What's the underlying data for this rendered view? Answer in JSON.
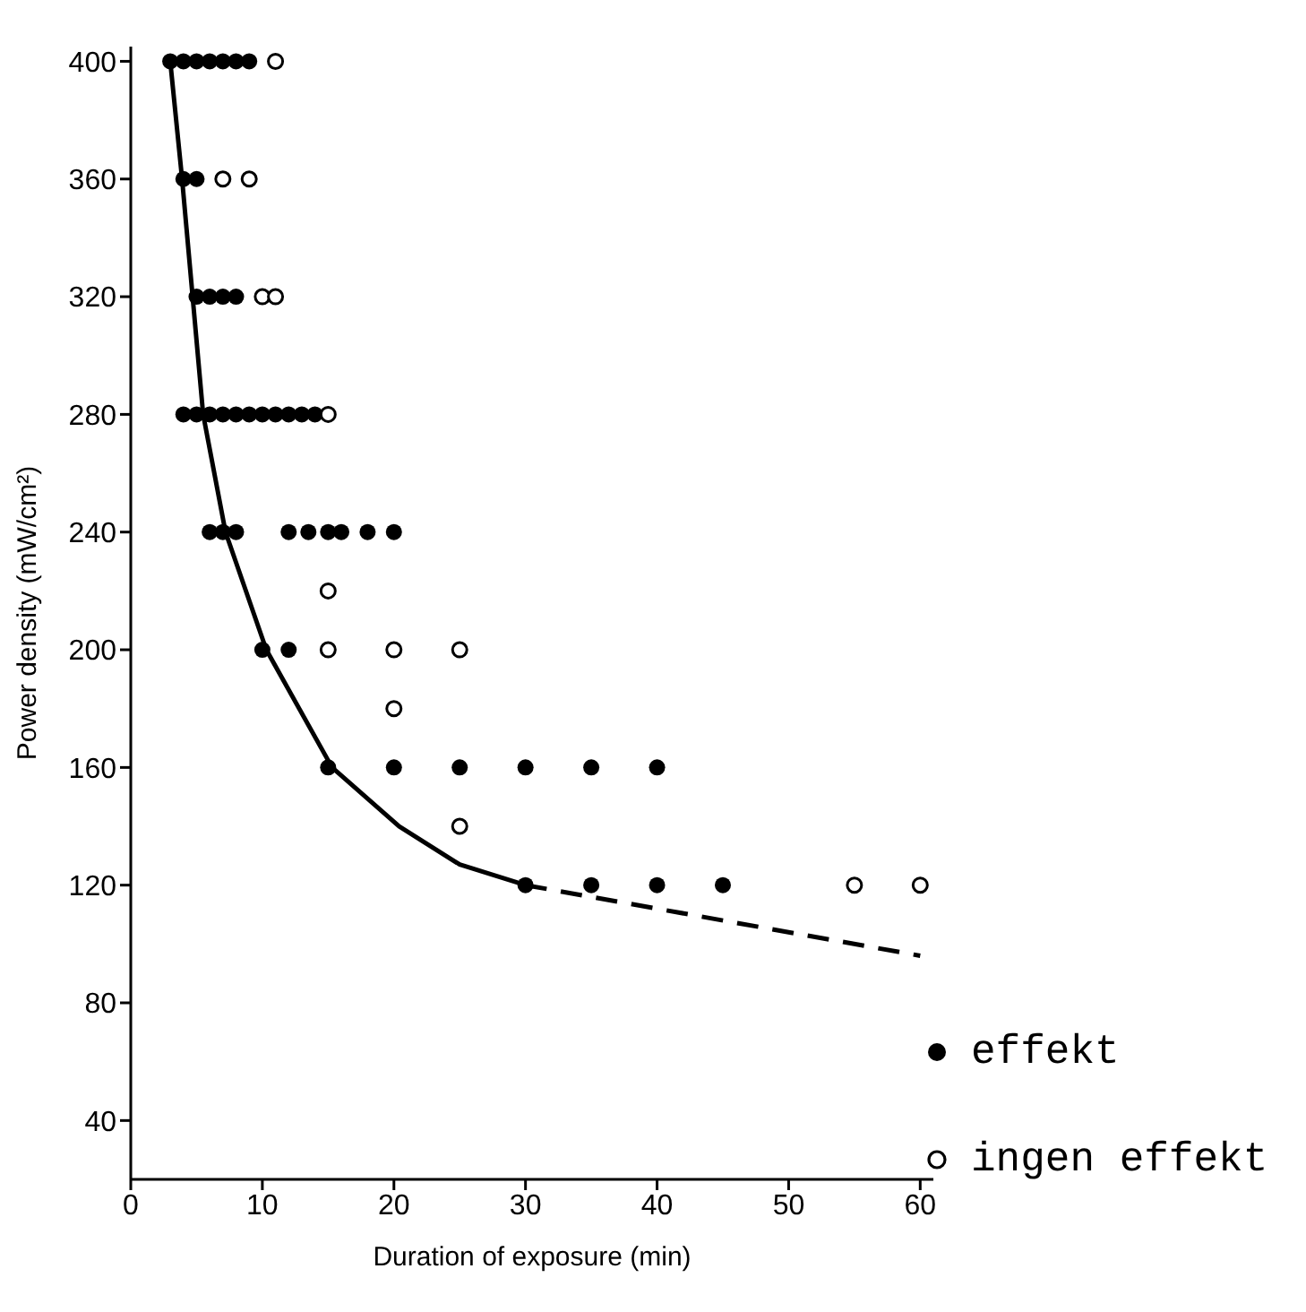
{
  "chart_data": {
    "type": "scatter",
    "xlabel": "Duration of exposure (min)",
    "ylabel": "Power density (mW/cm²)",
    "xlim": [
      0,
      61
    ],
    "xticks": [
      0,
      10,
      20,
      30,
      40,
      50,
      60
    ],
    "ylim": [
      20,
      405
    ],
    "yticks": [
      40,
      80,
      120,
      160,
      200,
      240,
      280,
      320,
      360,
      400
    ],
    "grid": false,
    "legend": "bottom right",
    "series": [
      {
        "name": "effekt",
        "marker": "circle",
        "color": "#000000",
        "x": [
          3,
          4,
          5,
          6,
          7,
          8,
          9,
          4,
          5,
          5,
          6,
          7,
          8,
          4,
          5,
          6,
          7,
          8,
          9,
          10,
          11,
          12,
          13,
          14,
          6,
          7,
          8,
          12,
          13.5,
          15,
          16,
          18,
          20,
          10,
          12,
          15,
          20,
          25,
          30,
          35,
          40,
          30,
          35,
          40,
          45
        ],
        "values": [
          400,
          400,
          400,
          400,
          400,
          400,
          400,
          360,
          360,
          320,
          320,
          320,
          320,
          280,
          280,
          280,
          280,
          280,
          280,
          280,
          280,
          280,
          280,
          280,
          240,
          240,
          240,
          240,
          240,
          240,
          240,
          240,
          240,
          200,
          200,
          160,
          160,
          160,
          160,
          160,
          160,
          120,
          120,
          120,
          120
        ]
      },
      {
        "name": "ingen effekt",
        "marker": "circle-open",
        "color": "#000000",
        "x": [
          11,
          7,
          9,
          10,
          11,
          15,
          15,
          15,
          20,
          25,
          20,
          25,
          55,
          60
        ],
        "values": [
          400,
          360,
          360,
          320,
          320,
          280,
          220,
          200,
          200,
          200,
          180,
          140,
          120,
          120
        ]
      },
      {
        "type": "line",
        "line_style": "solid",
        "marker": "none",
        "color": "#000000",
        "x": [
          3,
          3.9,
          4.7,
          5.5,
          7.2,
          10.3,
          15.3,
          20.4,
          25,
          30
        ],
        "values": [
          400,
          360,
          320,
          280,
          240,
          200,
          160,
          140,
          127,
          120
        ]
      },
      {
        "type": "line",
        "line_style": "dashed",
        "marker": "none",
        "color": "#000000",
        "x": [
          30,
          60
        ],
        "values": [
          120,
          96
        ]
      }
    ]
  }
}
